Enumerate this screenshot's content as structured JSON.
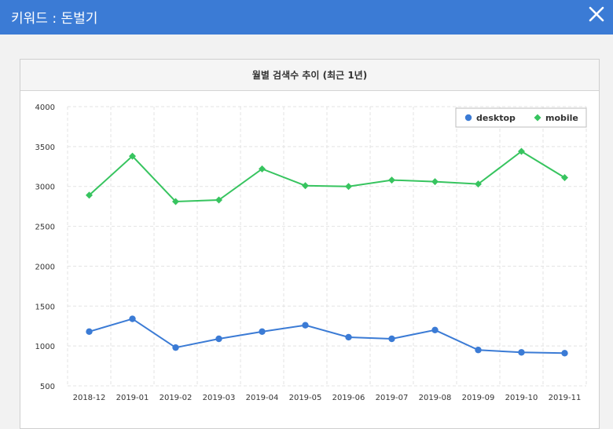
{
  "header": {
    "title": "키워드 : 돈벌기",
    "close_icon": "close-icon"
  },
  "panel": {
    "title": "월별 검색수 추이 (최근 1년)"
  },
  "chart_data": {
    "type": "line",
    "title": "월별 검색수 추이 (최근 1년)",
    "categories": [
      "2018-12",
      "2019-01",
      "2019-02",
      "2019-03",
      "2019-04",
      "2019-05",
      "2019-06",
      "2019-07",
      "2019-08",
      "2019-09",
      "2019-10",
      "2019-11"
    ],
    "ylim": [
      500,
      4000
    ],
    "yticks": [
      "4000",
      "3500",
      "3000",
      "2500",
      "2000",
      "1500",
      "1000",
      "500"
    ],
    "grid": true,
    "legend_position": "top-right",
    "series": [
      {
        "name": "desktop",
        "color": "#3b7bd5",
        "marker": "circle",
        "values": [
          1180,
          1340,
          980,
          1090,
          1180,
          1260,
          1110,
          1090,
          1200,
          950,
          920,
          910
        ]
      },
      {
        "name": "mobile",
        "color": "#37c45f",
        "marker": "diamond",
        "values": [
          2890,
          3380,
          2810,
          2830,
          3220,
          3010,
          3000,
          3080,
          3060,
          3030,
          3440,
          3110
        ]
      }
    ]
  }
}
